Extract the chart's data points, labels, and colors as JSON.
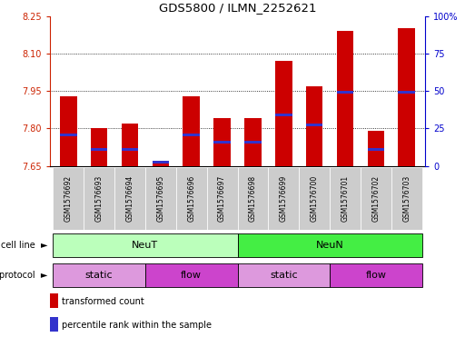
{
  "title": "GDS5800 / ILMN_2252621",
  "samples": [
    "GSM1576692",
    "GSM1576693",
    "GSM1576694",
    "GSM1576695",
    "GSM1576696",
    "GSM1576697",
    "GSM1576698",
    "GSM1576699",
    "GSM1576700",
    "GSM1576701",
    "GSM1576702",
    "GSM1576703"
  ],
  "bar_values": [
    7.93,
    7.8,
    7.82,
    7.67,
    7.93,
    7.84,
    7.84,
    8.07,
    7.97,
    8.19,
    7.79,
    8.2
  ],
  "bar_bottom": 7.65,
  "blue_values": [
    7.775,
    7.715,
    7.715,
    7.665,
    7.775,
    7.745,
    7.745,
    7.855,
    7.815,
    7.945,
    7.715,
    7.945
  ],
  "ymin": 7.65,
  "ymax": 8.25,
  "yticks_left": [
    7.65,
    7.8,
    7.95,
    8.1,
    8.25
  ],
  "yticks_right": [
    0,
    25,
    50,
    75,
    100
  ],
  "bar_color": "#cc0000",
  "blue_color": "#3333cc",
  "cell_line_groups": [
    {
      "label": "NeuT",
      "start": 0,
      "end": 5,
      "color": "#bbffbb"
    },
    {
      "label": "NeuN",
      "start": 6,
      "end": 11,
      "color": "#44ee44"
    }
  ],
  "protocol_groups": [
    {
      "label": "static",
      "start": 0,
      "end": 2,
      "color": "#dd99dd"
    },
    {
      "label": "flow",
      "start": 3,
      "end": 5,
      "color": "#cc44cc"
    },
    {
      "label": "static",
      "start": 6,
      "end": 8,
      "color": "#dd99dd"
    },
    {
      "label": "flow",
      "start": 9,
      "end": 11,
      "color": "#cc44cc"
    }
  ],
  "legend_items": [
    {
      "label": "transformed count",
      "color": "#cc0000"
    },
    {
      "label": "percentile rank within the sample",
      "color": "#3333cc"
    }
  ],
  "background_color": "#ffffff",
  "tick_color_left": "#cc2200",
  "tick_color_right": "#0000cc"
}
